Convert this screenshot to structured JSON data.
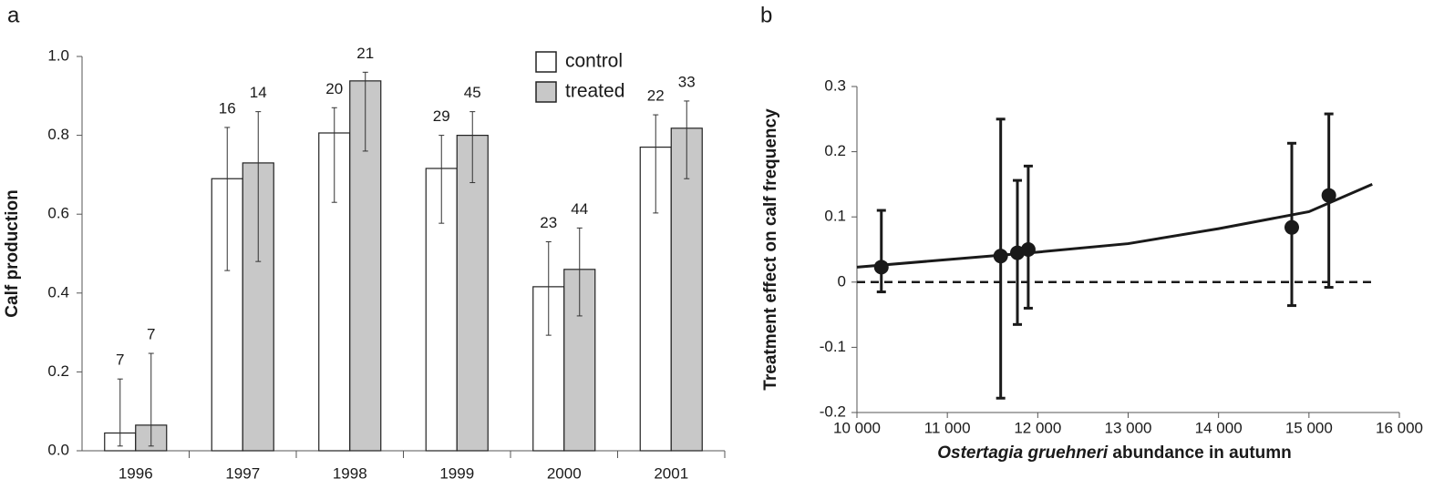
{
  "chart_data": [
    {
      "type": "bar",
      "panel": "a",
      "ylabel": "Calf production",
      "categories": [
        "1996",
        "1997",
        "1998",
        "1999",
        "2000",
        "2001"
      ],
      "series": [
        {
          "name": "control",
          "color": "#ffffff",
          "values": [
            0.045,
            0.69,
            0.806,
            0.716,
            0.416,
            0.77
          ],
          "lower": [
            0.012,
            0.457,
            0.63,
            0.577,
            0.293,
            0.603
          ],
          "upper": [
            0.182,
            0.82,
            0.87,
            0.8,
            0.53,
            0.852
          ],
          "n": [
            7,
            16,
            20,
            29,
            23,
            22
          ]
        },
        {
          "name": "treated",
          "color": "#c8c8c8",
          "values": [
            0.065,
            0.73,
            0.938,
            0.8,
            0.46,
            0.818
          ],
          "lower": [
            0.012,
            0.48,
            0.76,
            0.68,
            0.342,
            0.69
          ],
          "upper": [
            0.247,
            0.86,
            0.96,
            0.86,
            0.565,
            0.887
          ],
          "n": [
            7,
            14,
            21,
            45,
            44,
            33
          ]
        }
      ],
      "ylim": [
        0,
        1.0
      ],
      "yticks": [
        {
          "value": 0,
          "label": "0.0"
        },
        0.2,
        0.4,
        0.6,
        0.8,
        {
          "value": 1.0,
          "label": "1.0"
        }
      ],
      "legend": "top-right"
    },
    {
      "type": "scatter",
      "panel": "b",
      "ylabel": "Treatment effect on calf frequency",
      "xlabel": [
        "Ostertagia gruehneri",
        " abundance in autumn"
      ],
      "x": [
        10270,
        11590,
        11775,
        11895,
        14810,
        15220
      ],
      "values": [
        0.023,
        0.04,
        0.045,
        0.05,
        0.084,
        0.133
      ],
      "lower": [
        -0.015,
        -0.178,
        -0.065,
        -0.04,
        -0.036,
        -0.008
      ],
      "upper": [
        0.11,
        0.25,
        0.156,
        0.178,
        0.213,
        0.258
      ],
      "color": "#1a1a1a",
      "fit": {
        "x": [
          10000,
          12000,
          13000,
          14000,
          15000,
          15700
        ],
        "values": [
          0.023,
          0.046,
          0.059,
          0.082,
          0.108,
          0.15
        ]
      },
      "reference_line": 0,
      "xlim": [
        10000,
        16000
      ],
      "ylim": [
        -0.2,
        0.3
      ],
      "xticks": [
        {
          "value": 10000,
          "label": "10 000"
        },
        {
          "value": 11000,
          "label": "11 000"
        },
        {
          "value": 12000,
          "label": "12 000"
        },
        {
          "value": 13000,
          "label": "13 000"
        },
        {
          "value": 14000,
          "label": "14 000"
        },
        {
          "value": 15000,
          "label": "15 000"
        },
        {
          "value": 16000,
          "label": "16 000"
        }
      ],
      "yticks": [
        -0.2,
        -0.1,
        0,
        0.1,
        0.2,
        0.3
      ]
    }
  ]
}
